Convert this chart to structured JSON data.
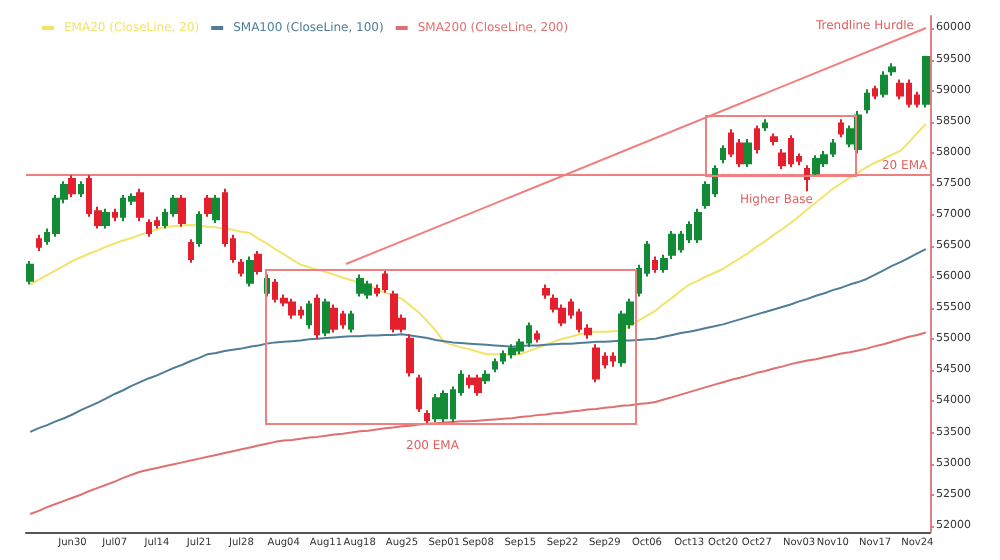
{
  "chart_data": {
    "type": "candlestick",
    "categories": [
      null,
      null,
      null,
      null,
      null,
      "Jun30",
      null,
      null,
      null,
      null,
      "Jul07",
      null,
      null,
      null,
      null,
      "Jul14",
      null,
      null,
      null,
      null,
      "Jul21",
      null,
      null,
      null,
      null,
      "Jul28",
      null,
      null,
      null,
      null,
      "Aug04",
      null,
      null,
      null,
      null,
      "Aug11",
      null,
      null,
      null,
      "Aug18",
      null,
      null,
      null,
      null,
      "Aug25",
      null,
      null,
      null,
      null,
      "Sep01",
      null,
      null,
      null,
      "Sep08",
      null,
      null,
      null,
      null,
      "Sep15",
      null,
      null,
      null,
      null,
      "Sep22",
      null,
      null,
      null,
      null,
      "Sep29",
      null,
      null,
      null,
      null,
      "Oct06",
      null,
      null,
      null,
      null,
      "Oct13",
      null,
      null,
      null,
      "Oct20",
      null,
      null,
      null,
      "Oct27",
      null,
      null,
      null,
      null,
      "Nov03",
      null,
      null,
      null,
      "Nov10",
      null,
      null,
      null,
      null,
      "Nov17",
      null,
      null,
      null,
      null,
      "Nov24",
      null
    ],
    "ohlc": [
      [
        55940,
        56260,
        55880,
        56200
      ],
      [
        56610,
        56680,
        56420,
        56490
      ],
      [
        56580,
        56780,
        56520,
        56710
      ],
      [
        56710,
        57320,
        56650,
        57260
      ],
      [
        57260,
        57540,
        57190,
        57480
      ],
      [
        57580,
        57640,
        57290,
        57350
      ],
      [
        57350,
        57540,
        57290,
        57480
      ],
      [
        57580,
        57640,
        56970,
        57030
      ],
      [
        57060,
        57130,
        56780,
        56840
      ],
      [
        56840,
        57100,
        56780,
        57030
      ],
      [
        57030,
        57100,
        56900,
        56970
      ],
      [
        56970,
        57320,
        56900,
        57260
      ],
      [
        57230,
        57350,
        57160,
        57290
      ],
      [
        57350,
        57420,
        56900,
        56970
      ],
      [
        56870,
        56930,
        56650,
        56710
      ],
      [
        56900,
        56970,
        56780,
        56840
      ],
      [
        56840,
        57100,
        56780,
        57030
      ],
      [
        57030,
        57320,
        56970,
        57260
      ],
      [
        57260,
        57320,
        56810,
        56870
      ],
      [
        56550,
        56610,
        56230,
        56290
      ],
      [
        56550,
        57060,
        56490,
        57000
      ],
      [
        57260,
        57320,
        56970,
        57030
      ],
      [
        56930,
        57320,
        56870,
        57260
      ],
      [
        57350,
        57420,
        56490,
        56550
      ],
      [
        56610,
        56680,
        56230,
        56290
      ],
      [
        56230,
        56290,
        56010,
        56070
      ],
      [
        55910,
        56330,
        55850,
        56260
      ],
      [
        56360,
        56420,
        56040,
        56100
      ],
      [
        55750,
        56040,
        55690,
        55970
      ],
      [
        55910,
        55970,
        55590,
        55650
      ],
      [
        55650,
        55720,
        55530,
        55590
      ],
      [
        55590,
        55650,
        55330,
        55400
      ],
      [
        55460,
        55530,
        55330,
        55400
      ],
      [
        55240,
        55620,
        55170,
        55560
      ],
      [
        55650,
        55720,
        55010,
        55080
      ],
      [
        55110,
        55650,
        55050,
        55590
      ],
      [
        55490,
        55560,
        55110,
        55170
      ],
      [
        55400,
        55460,
        55170,
        55240
      ],
      [
        55170,
        55460,
        55110,
        55400
      ],
      [
        55750,
        56040,
        55690,
        55970
      ],
      [
        55720,
        55940,
        55650,
        55880
      ],
      [
        55810,
        55880,
        55690,
        55750
      ],
      [
        56040,
        56100,
        55750,
        55810
      ],
      [
        55720,
        55780,
        55110,
        55170
      ],
      [
        55330,
        55400,
        55110,
        55170
      ],
      [
        55010,
        55080,
        54400,
        54470
      ],
      [
        54370,
        54430,
        53830,
        53890
      ],
      [
        53800,
        53860,
        53640,
        53700
      ],
      [
        53730,
        54120,
        53670,
        54050
      ],
      [
        53730,
        54180,
        53670,
        54120
      ],
      [
        53730,
        54240,
        53670,
        54180
      ],
      [
        54150,
        54500,
        54090,
        54430
      ],
      [
        54370,
        54430,
        54210,
        54280
      ],
      [
        54370,
        54430,
        54090,
        54150
      ],
      [
        54340,
        54500,
        54280,
        54430
      ],
      [
        54530,
        54690,
        54470,
        54630
      ],
      [
        54660,
        54820,
        54600,
        54760
      ],
      [
        54760,
        54920,
        54690,
        54850
      ],
      [
        54820,
        55010,
        54760,
        54950
      ],
      [
        54950,
        55270,
        54880,
        55210
      ],
      [
        55080,
        55140,
        54950,
        55010
      ],
      [
        55810,
        55880,
        55650,
        55720
      ],
      [
        55650,
        55720,
        55430,
        55490
      ],
      [
        55490,
        55560,
        55210,
        55270
      ],
      [
        55590,
        55650,
        55330,
        55400
      ],
      [
        55430,
        55490,
        55110,
        55170
      ],
      [
        55170,
        55240,
        55010,
        55080
      ],
      [
        54850,
        54920,
        54310,
        54370
      ],
      [
        54720,
        54790,
        54530,
        54600
      ],
      [
        54720,
        54790,
        54560,
        54660
      ],
      [
        54630,
        55460,
        54560,
        55400
      ],
      [
        55240,
        55650,
        55170,
        55590
      ],
      [
        55750,
        56200,
        55690,
        56130
      ],
      [
        56070,
        56580,
        56010,
        56520
      ],
      [
        56260,
        56330,
        56070,
        56130
      ],
      [
        56130,
        56360,
        56070,
        56290
      ],
      [
        56360,
        56740,
        56290,
        56680
      ],
      [
        56450,
        56740,
        56390,
        56680
      ],
      [
        56610,
        56900,
        56550,
        56840
      ],
      [
        56610,
        57100,
        56550,
        57030
      ],
      [
        57160,
        57540,
        57100,
        57480
      ],
      [
        57350,
        57800,
        57290,
        57740
      ],
      [
        57900,
        58120,
        57830,
        58060
      ],
      [
        58310,
        58380,
        57930,
        57990
      ],
      [
        58150,
        58220,
        57770,
        57830
      ],
      [
        57830,
        58220,
        57770,
        58150
      ],
      [
        58380,
        58440,
        57990,
        58060
      ],
      [
        58410,
        58540,
        58350,
        58470
      ],
      [
        58250,
        58310,
        58120,
        58190
      ],
      [
        57990,
        58060,
        57740,
        57800
      ],
      [
        58220,
        58280,
        57770,
        57830
      ],
      [
        57930,
        57990,
        57800,
        57870
      ],
      [
        57740,
        57800,
        57380,
        57580
      ],
      [
        57670,
        57960,
        57610,
        57900
      ],
      [
        57830,
        58030,
        57770,
        57960
      ],
      [
        57990,
        58220,
        57930,
        58150
      ],
      [
        58470,
        58540,
        58250,
        58310
      ],
      [
        58150,
        58440,
        58090,
        58380
      ],
      [
        58060,
        58670,
        57990,
        58600
      ],
      [
        58700,
        59020,
        58630,
        58950
      ],
      [
        59020,
        59080,
        58860,
        58920
      ],
      [
        58950,
        59310,
        58890,
        59240
      ],
      [
        59310,
        59440,
        59240,
        59370
      ],
      [
        59110,
        59180,
        58860,
        58920
      ],
      [
        59110,
        59180,
        58730,
        58790
      ],
      [
        58920,
        58980,
        58730,
        58790
      ],
      [
        58790,
        59560,
        58730,
        59540
      ]
    ],
    "colors": [
      "#138a36",
      "#e5202e",
      "#138a36",
      "#138a36",
      "#138a36",
      "#e5202e",
      "#138a36",
      "#e5202e",
      "#e5202e",
      "#138a36",
      "#e5202e",
      "#138a36",
      "#138a36",
      "#e5202e",
      "#e5202e",
      "#e5202e",
      "#138a36",
      "#138a36",
      "#e5202e",
      "#e5202e",
      "#138a36",
      "#e5202e",
      "#138a36",
      "#e5202e",
      "#e5202e",
      "#e5202e",
      "#138a36",
      "#e5202e",
      "#138a36",
      "#e5202e",
      "#e5202e",
      "#e5202e",
      "#e5202e",
      "#138a36",
      "#e5202e",
      "#138a36",
      "#e5202e",
      "#e5202e",
      "#138a36",
      "#138a36",
      "#138a36",
      "#e5202e",
      "#e5202e",
      "#e5202e",
      "#e5202e",
      "#e5202e",
      "#e5202e",
      "#e5202e",
      "#138a36",
      "#138a36",
      "#138a36",
      "#138a36",
      "#e5202e",
      "#e5202e",
      "#138a36",
      "#138a36",
      "#138a36",
      "#138a36",
      "#138a36",
      "#138a36",
      "#e5202e",
      "#e5202e",
      "#e5202e",
      "#e5202e",
      "#e5202e",
      "#e5202e",
      "#e5202e",
      "#e5202e",
      "#e5202e",
      "#e5202e",
      "#138a36",
      "#138a36",
      "#138a36",
      "#138a36",
      "#e5202e",
      "#138a36",
      "#138a36",
      "#138a36",
      "#138a36",
      "#138a36",
      "#138a36",
      "#138a36",
      "#138a36",
      "#e5202e",
      "#e5202e",
      "#138a36",
      "#e5202e",
      "#138a36",
      "#e5202e",
      "#e5202e",
      "#e5202e",
      "#e5202e",
      "#e5202e",
      "#138a36",
      "#138a36",
      "#138a36",
      "#e5202e",
      "#138a36",
      "#138a36",
      "#138a36",
      "#e5202e",
      "#138a36",
      "#138a36",
      "#e5202e",
      "#e5202e",
      "#e5202e",
      "#138a36"
    ],
    "series": [
      {
        "name": "EMA20 (CloseLine, 20)",
        "type": "line",
        "color": "#f2e36a",
        "values": [
          55880,
          55960,
          56030,
          56110,
          56180,
          56260,
          56320,
          56380,
          56430,
          56490,
          56540,
          56590,
          56630,
          56680,
          56720,
          56770,
          56810,
          56820,
          56830,
          56840,
          56830,
          56810,
          56800,
          56780,
          56760,
          56730,
          56710,
          56620,
          56540,
          56450,
          56370,
          56280,
          56200,
          56160,
          56120,
          56080,
          56040,
          55990,
          55950,
          55910,
          55860,
          55810,
          55750,
          55700,
          55650,
          55540,
          55430,
          55290,
          55140,
          54950,
          54910,
          54870,
          54840,
          54800,
          54760,
          54760,
          54760,
          54760,
          54760,
          54810,
          54860,
          54910,
          54960,
          55010,
          55040,
          55080,
          55110,
          55120,
          55120,
          55130,
          55140,
          55220,
          55300,
          55380,
          55460,
          55570,
          55670,
          55780,
          55880,
          55940,
          56010,
          56070,
          56130,
          56220,
          56300,
          56390,
          56490,
          56580,
          56680,
          56770,
          56870,
          56980,
          57090,
          57200,
          57310,
          57420,
          57510,
          57600,
          57680,
          57770,
          57840,
          57900,
          57970,
          58030,
          58170,
          58320,
          58460
        ]
      },
      {
        "name": "SMA100 (CloseLine, 100)",
        "type": "line",
        "color": "#4f7d99",
        "values": [
          53510,
          53570,
          53620,
          53680,
          53730,
          53790,
          53860,
          53920,
          53980,
          54050,
          54120,
          54180,
          54250,
          54310,
          54370,
          54420,
          54480,
          54540,
          54590,
          54650,
          54700,
          54760,
          54780,
          54810,
          54830,
          54850,
          54880,
          54900,
          54930,
          54950,
          54960,
          54970,
          54980,
          55000,
          55010,
          55020,
          55030,
          55040,
          55050,
          55050,
          55060,
          55060,
          55070,
          55070,
          55080,
          55060,
          55040,
          55020,
          54990,
          54970,
          54950,
          54940,
          54930,
          54920,
          54910,
          54900,
          54890,
          54880,
          54890,
          54900,
          54900,
          54910,
          54920,
          54930,
          54930,
          54940,
          54950,
          54960,
          54960,
          54970,
          54980,
          54980,
          54990,
          55000,
          55010,
          55040,
          55070,
          55100,
          55120,
          55150,
          55180,
          55210,
          55240,
          55280,
          55320,
          55360,
          55400,
          55440,
          55480,
          55520,
          55560,
          55610,
          55650,
          55700,
          55740,
          55790,
          55830,
          55880,
          55920,
          55970,
          56040,
          56110,
          56180,
          56240,
          56310,
          56380,
          56450
        ]
      },
      {
        "name": "SMA200 (CloseLine, 200)",
        "type": "line",
        "color": "#e07070",
        "values": [
          52190,
          52240,
          52300,
          52350,
          52400,
          52450,
          52500,
          52560,
          52610,
          52660,
          52710,
          52770,
          52820,
          52870,
          52900,
          52930,
          52960,
          52990,
          53020,
          53050,
          53080,
          53110,
          53140,
          53170,
          53200,
          53230,
          53260,
          53290,
          53320,
          53350,
          53370,
          53380,
          53400,
          53420,
          53430,
          53450,
          53470,
          53480,
          53500,
          53520,
          53530,
          53550,
          53570,
          53580,
          53600,
          53610,
          53630,
          53640,
          53650,
          53660,
          53670,
          53680,
          53680,
          53690,
          53700,
          53710,
          53720,
          53730,
          53750,
          53760,
          53780,
          53790,
          53810,
          53820,
          53840,
          53850,
          53870,
          53880,
          53900,
          53910,
          53930,
          53940,
          53960,
          53970,
          53990,
          54030,
          54070,
          54110,
          54150,
          54190,
          54230,
          54270,
          54310,
          54350,
          54380,
          54420,
          54460,
          54490,
          54530,
          54560,
          54600,
          54630,
          54660,
          54680,
          54710,
          54740,
          54770,
          54790,
          54820,
          54850,
          54890,
          54920,
          54960,
          55000,
          55040,
          55070,
          55110
        ]
      }
    ],
    "ylim": [
      51900,
      60200
    ],
    "yticks": [
      52000,
      52500,
      53000,
      53500,
      54000,
      54500,
      55000,
      55500,
      56000,
      56500,
      57000,
      57500,
      58000,
      58500,
      59000,
      59500,
      60000
    ],
    "ref_lines": [
      {
        "axis": "y",
        "value": 57650,
        "color": "#f08080"
      }
    ],
    "annotations": [
      "Trendline Hurdle",
      "20 EMA",
      "Higher Base",
      "200 EMA"
    ],
    "legend": "top left",
    "grid": false
  }
}
